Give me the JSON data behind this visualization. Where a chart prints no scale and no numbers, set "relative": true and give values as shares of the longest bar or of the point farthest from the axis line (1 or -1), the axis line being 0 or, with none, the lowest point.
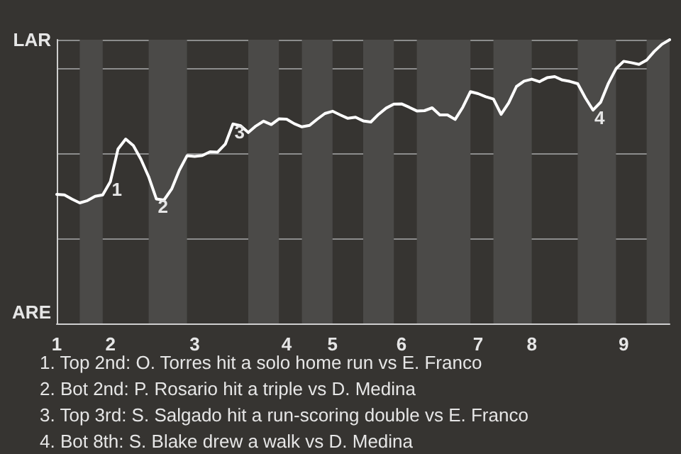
{
  "chart_data": {
    "type": "line",
    "relative": true,
    "categories": [
      "1",
      null,
      null,
      null,
      null,
      null,
      null,
      "2",
      null,
      null,
      null,
      null,
      null,
      null,
      null,
      null,
      null,
      null,
      "3",
      null,
      null,
      null,
      null,
      null,
      null,
      null,
      null,
      null,
      null,
      null,
      "4",
      null,
      null,
      null,
      null,
      null,
      "5",
      null,
      null,
      null,
      null,
      null,
      null,
      null,
      null,
      "6",
      null,
      null,
      null,
      null,
      null,
      null,
      null,
      null,
      null,
      "7",
      null,
      null,
      null,
      null,
      null,
      null,
      "8",
      null,
      null,
      null,
      null,
      null,
      null,
      null,
      null,
      null,
      null,
      null,
      "9",
      null,
      null,
      null,
      null,
      null,
      null
    ],
    "series": [
      {
        "color": "#ffffff",
        "values": [
          0.455,
          0.453,
          0.438,
          0.425,
          0.433,
          0.448,
          0.453,
          0.5,
          0.615,
          0.65,
          0.627,
          0.578,
          0.517,
          0.439,
          0.435,
          0.474,
          0.54,
          0.591,
          0.589,
          0.592,
          0.605,
          0.604,
          0.632,
          0.703,
          0.697,
          0.673,
          0.696,
          0.713,
          0.701,
          0.721,
          0.72,
          0.704,
          0.693,
          0.698,
          0.72,
          0.74,
          0.748,
          0.735,
          0.723,
          0.727,
          0.714,
          0.71,
          0.737,
          0.759,
          0.773,
          0.774,
          0.762,
          0.749,
          0.75,
          0.76,
          0.735,
          0.735,
          0.719,
          0.762,
          0.817,
          0.81,
          0.799,
          0.791,
          0.737,
          0.778,
          0.835,
          0.854,
          0.861,
          0.852,
          0.866,
          0.87,
          0.858,
          0.853,
          0.845,
          0.795,
          0.752,
          0.78,
          0.846,
          0.898,
          0.924,
          0.919,
          0.913,
          0.928,
          0.959,
          0.984,
          1
        ]
      }
    ],
    "grid": "y",
    "marker": "none",
    "line_style": "solid",
    "annotations": [
      "LAR",
      "ARE",
      "1. Top 2nd: O. Torres hit a solo home run vs E. Franco",
      "2. Bot 2nd: P. Rosario hit a triple vs D. Medina",
      "3. Top 3rd: S. Salgado hit a run-scoring double vs E. Franco",
      "4. Bot 8th: S. Blake drew a walk vs D. Medina",
      {
        "text": "1",
        "y": 0.5
      },
      {
        "text": "2",
        "y": 0.439
      },
      {
        "text": "3",
        "y": 0.703
      },
      {
        "text": "4",
        "y": 0.752
      }
    ]
  }
}
